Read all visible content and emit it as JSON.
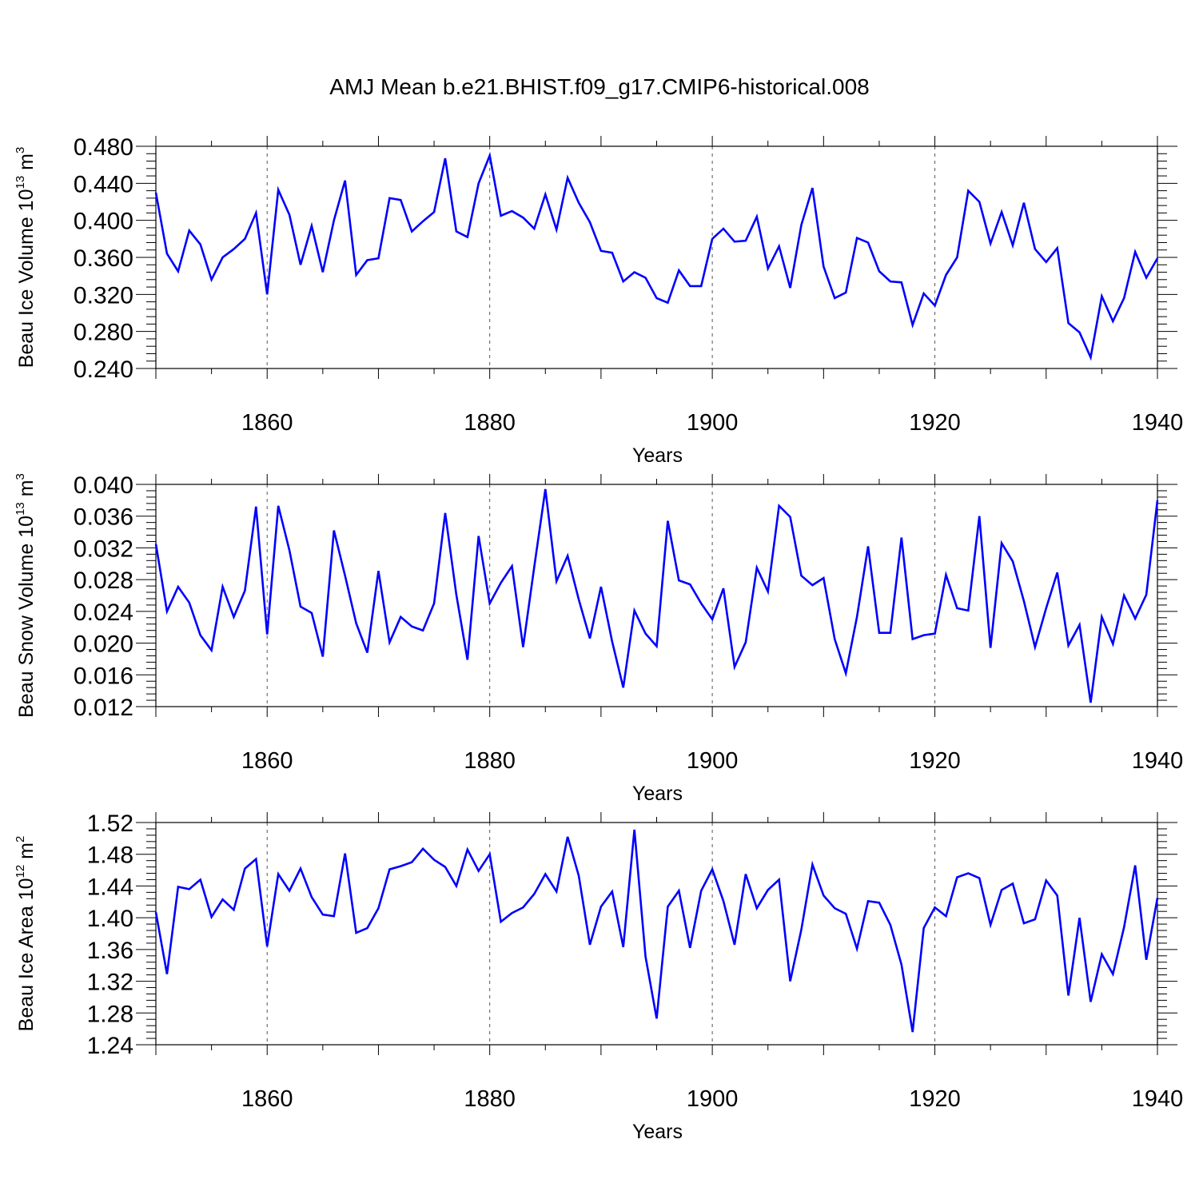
{
  "title": "AMJ Mean b.e21.BHIST.f09_g17.CMIP6-historical.008",
  "colors": {
    "series": "#0000ff",
    "axes": "#000000",
    "grid": "#555555"
  },
  "chart_data": [
    {
      "type": "line",
      "ylabel_main": "Beau Ice Volume 10",
      "ylabel_exp": "13",
      "ylabel_unit": " m",
      "ylabel_unit_exp": "3",
      "xlabel": "Years",
      "xlim": [
        1850,
        1940
      ],
      "ylim": [
        0.24,
        0.48
      ],
      "yticks": [
        0.24,
        0.28,
        0.32,
        0.36,
        0.4,
        0.44,
        0.48
      ],
      "ytick_labels": [
        "0.240",
        "0.280",
        "0.320",
        "0.360",
        "0.400",
        "0.440",
        "0.480"
      ],
      "xticks": [
        1860,
        1880,
        1900,
        1920,
        1940
      ],
      "xtick_labels": [
        "1860",
        "1880",
        "1900",
        "1920",
        "1940"
      ],
      "grid_x": [
        1860,
        1880,
        1900,
        1920
      ],
      "start_year": 1850,
      "values": [
        0.43,
        0.364,
        0.345,
        0.389,
        0.374,
        0.336,
        0.36,
        0.369,
        0.38,
        0.408,
        0.32,
        0.433,
        0.406,
        0.352,
        0.394,
        0.344,
        0.4,
        0.443,
        0.341,
        0.357,
        0.359,
        0.424,
        0.422,
        0.388,
        0.399,
        0.409,
        0.467,
        0.388,
        0.382,
        0.44,
        0.47,
        0.405,
        0.41,
        0.403,
        0.391,
        0.428,
        0.39,
        0.446,
        0.419,
        0.398,
        0.367,
        0.365,
        0.334,
        0.344,
        0.338,
        0.316,
        0.311,
        0.346,
        0.329,
        0.329,
        0.38,
        0.391,
        0.377,
        0.378,
        0.404,
        0.348,
        0.372,
        0.327,
        0.395,
        0.435,
        0.35,
        0.316,
        0.322,
        0.381,
        0.376,
        0.345,
        0.334,
        0.333,
        0.287,
        0.321,
        0.308,
        0.341,
        0.36,
        0.432,
        0.42,
        0.375,
        0.409,
        0.373,
        0.419,
        0.369,
        0.355,
        0.37,
        0.289,
        0.279,
        0.252,
        0.318,
        0.291,
        0.316,
        0.366,
        0.338,
        0.359
      ]
    },
    {
      "type": "line",
      "ylabel_main": "Beau Snow Volume 10",
      "ylabel_exp": "13",
      "ylabel_unit": " m",
      "ylabel_unit_exp": "3",
      "xlabel": "Years",
      "xlim": [
        1850,
        1940
      ],
      "ylim": [
        0.012,
        0.04
      ],
      "yticks": [
        0.012,
        0.016,
        0.02,
        0.024,
        0.028,
        0.032,
        0.036,
        0.04
      ],
      "ytick_labels": [
        "0.012",
        "0.016",
        "0.020",
        "0.024",
        "0.028",
        "0.032",
        "0.036",
        "0.040"
      ],
      "xticks": [
        1860,
        1880,
        1900,
        1920,
        1940
      ],
      "xtick_labels": [
        "1860",
        "1880",
        "1900",
        "1920",
        "1940"
      ],
      "grid_x": [
        1860,
        1880,
        1900,
        1920
      ],
      "start_year": 1850,
      "values": [
        0.0325,
        0.024,
        0.0271,
        0.0251,
        0.021,
        0.0191,
        0.0271,
        0.0233,
        0.0266,
        0.0372,
        0.0211,
        0.0373,
        0.0317,
        0.0246,
        0.0238,
        0.0183,
        0.0342,
        0.0285,
        0.0225,
        0.0188,
        0.0291,
        0.0201,
        0.0233,
        0.0221,
        0.0216,
        0.025,
        0.0364,
        0.0261,
        0.0179,
        0.0335,
        0.025,
        0.0276,
        0.0297,
        0.0195,
        0.0296,
        0.0394,
        0.0278,
        0.031,
        0.0255,
        0.0206,
        0.0271,
        0.0202,
        0.0144,
        0.0241,
        0.0212,
        0.0196,
        0.0354,
        0.0279,
        0.0274,
        0.025,
        0.023,
        0.0269,
        0.017,
        0.0201,
        0.0295,
        0.0265,
        0.0373,
        0.0359,
        0.0285,
        0.0273,
        0.0282,
        0.0205,
        0.0162,
        0.0233,
        0.0322,
        0.0213,
        0.0213,
        0.0333,
        0.0205,
        0.021,
        0.0212,
        0.0286,
        0.0244,
        0.0241,
        0.036,
        0.0194,
        0.0326,
        0.0303,
        0.0253,
        0.0195,
        0.0244,
        0.0289,
        0.0197,
        0.0223,
        0.0125,
        0.0233,
        0.0199,
        0.026,
        0.0231,
        0.0261,
        0.038
      ]
    },
    {
      "type": "line",
      "ylabel_main": "Beau Ice Area 10",
      "ylabel_exp": "12",
      "ylabel_unit": " m",
      "ylabel_unit_exp": "2",
      "xlabel": "Years",
      "xlim": [
        1850,
        1940
      ],
      "ylim": [
        1.24,
        1.52
      ],
      "yticks": [
        1.24,
        1.28,
        1.32,
        1.36,
        1.4,
        1.44,
        1.48,
        1.52
      ],
      "ytick_labels": [
        "1.24",
        "1.28",
        "1.32",
        "1.36",
        "1.40",
        "1.44",
        "1.48",
        "1.52"
      ],
      "xticks": [
        1860,
        1880,
        1900,
        1920,
        1940
      ],
      "xtick_labels": [
        "1860",
        "1880",
        "1900",
        "1920",
        "1940"
      ],
      "grid_x": [
        1860,
        1880,
        1900,
        1920
      ],
      "start_year": 1850,
      "values": [
        1.407,
        1.329,
        1.439,
        1.436,
        1.448,
        1.401,
        1.423,
        1.41,
        1.462,
        1.474,
        1.364,
        1.455,
        1.434,
        1.462,
        1.426,
        1.404,
        1.402,
        1.481,
        1.381,
        1.387,
        1.412,
        1.461,
        1.465,
        1.47,
        1.487,
        1.473,
        1.464,
        1.44,
        1.486,
        1.459,
        1.48,
        1.395,
        1.406,
        1.413,
        1.43,
        1.455,
        1.433,
        1.502,
        1.453,
        1.366,
        1.414,
        1.433,
        1.363,
        1.511,
        1.351,
        1.273,
        1.414,
        1.434,
        1.362,
        1.434,
        1.461,
        1.421,
        1.366,
        1.455,
        1.412,
        1.435,
        1.448,
        1.32,
        1.385,
        1.467,
        1.428,
        1.412,
        1.405,
        1.361,
        1.421,
        1.419,
        1.391,
        1.341,
        1.256,
        1.387,
        1.413,
        1.402,
        1.451,
        1.456,
        1.45,
        1.391,
        1.435,
        1.443,
        1.393,
        1.398,
        1.447,
        1.428,
        1.302,
        1.4,
        1.294,
        1.354,
        1.329,
        1.388,
        1.466,
        1.347,
        1.425
      ]
    }
  ]
}
